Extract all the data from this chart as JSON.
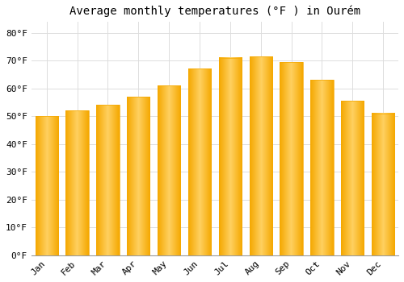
{
  "title": "Average monthly temperatures (°F ) in Ourém",
  "months": [
    "Jan",
    "Feb",
    "Mar",
    "Apr",
    "May",
    "Jun",
    "Jul",
    "Aug",
    "Sep",
    "Oct",
    "Nov",
    "Dec"
  ],
  "values": [
    50,
    52,
    54,
    57,
    61,
    67,
    71,
    71.5,
    69.5,
    63,
    55.5,
    51
  ],
  "bar_color_center": "#FFD060",
  "bar_color_edge": "#F5A800",
  "background_color": "#ffffff",
  "grid_color": "#dddddd",
  "title_fontsize": 10,
  "tick_fontsize": 8,
  "ylim": [
    0,
    84
  ],
  "yticks": [
    0,
    10,
    20,
    30,
    40,
    50,
    60,
    70,
    80
  ]
}
